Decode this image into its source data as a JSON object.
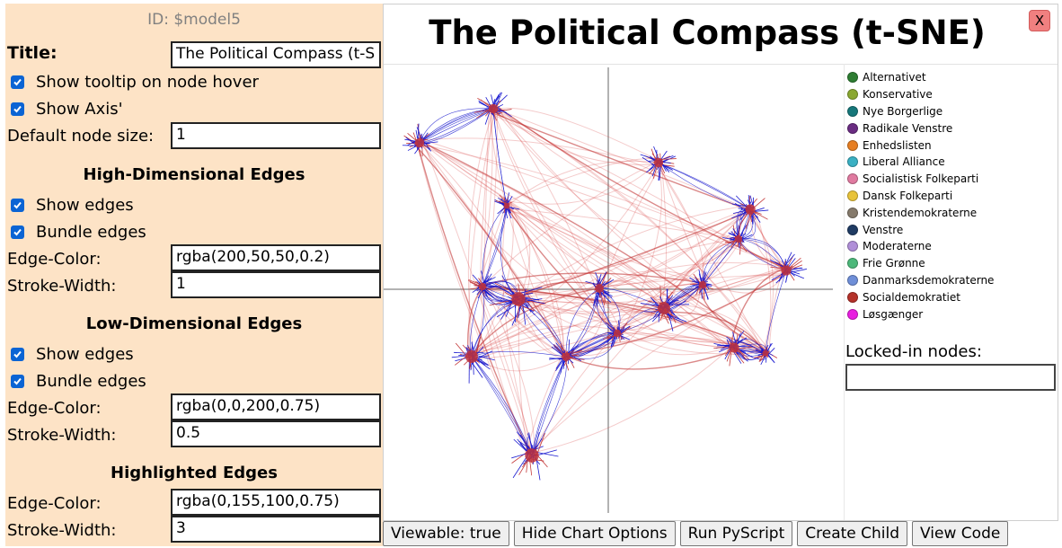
{
  "options": {
    "model_id": "ID: $model5",
    "title_label": "Title:",
    "title_value": "The Political Compass (t-S",
    "show_tooltip_label": "Show tooltip on node hover",
    "show_axis_label": "Show Axis'",
    "default_node_size_label": "Default node size:",
    "default_node_size_value": "1",
    "high_dim": {
      "heading": "High-Dimensional Edges",
      "show_edges_label": "Show edges",
      "bundle_edges_label": "Bundle edges",
      "edge_color_label": "Edge-Color:",
      "edge_color_value": "rgba(200,50,50,0.2)",
      "stroke_width_label": "Stroke-Width:",
      "stroke_width_value": "1"
    },
    "low_dim": {
      "heading": "Low-Dimensional Edges",
      "show_edges_label": "Show edges",
      "bundle_edges_label": "Bundle edges",
      "edge_color_label": "Edge-Color:",
      "edge_color_value": "rgba(0,0,200,0.75)",
      "stroke_width_label": "Stroke-Width:",
      "stroke_width_value": "0.5"
    },
    "highlighted": {
      "heading": "Highlighted Edges",
      "edge_color_label": "Edge-Color:",
      "edge_color_value": "rgba(0,155,100,0.75)",
      "stroke_width_label": "Stroke-Width:",
      "stroke_width_value": "3"
    }
  },
  "chart": {
    "title": "The Political Compass (t-SNE)",
    "close_label": "X",
    "locked_in_label": "Locked-in nodes:",
    "legend": [
      {
        "name": "Alternativet",
        "color": "#2e7d32"
      },
      {
        "name": "Konservative",
        "color": "#8aa831"
      },
      {
        "name": "Nye Borgerlige",
        "color": "#16777a"
      },
      {
        "name": "Radikale Venstre",
        "color": "#6a2c82"
      },
      {
        "name": "Enhedslisten",
        "color": "#e67e22"
      },
      {
        "name": "Liberal Alliance",
        "color": "#3ab0c3"
      },
      {
        "name": "Socialistisk Folkeparti",
        "color": "#e07aa0"
      },
      {
        "name": "Dansk Folkeparti",
        "color": "#e8c33a"
      },
      {
        "name": "Kristendemokraterne",
        "color": "#857a6b"
      },
      {
        "name": "Venstre",
        "color": "#1f3b63"
      },
      {
        "name": "Moderaterne",
        "color": "#b08fd8"
      },
      {
        "name": "Frie Grønne",
        "color": "#4cb87a"
      },
      {
        "name": "Danmarksdemokraterne",
        "color": "#6f8fd8"
      },
      {
        "name": "Socialdemokratiet",
        "color": "#b5322a"
      },
      {
        "name": "Løsgænger",
        "color": "#e81ee0"
      }
    ]
  },
  "buttons": {
    "viewable": "Viewable: true",
    "hide_options": "Hide Chart Options",
    "run_pyscript": "Run PyScript",
    "create_child": "Create Child",
    "view_code": "View Code"
  },
  "colors": {
    "panel_bg": "#fde3c6",
    "checkbox": "#0b64d4",
    "high_dim_edge": "rgba(200,50,50,0.2)",
    "low_dim_edge": "rgba(0,0,200,0.75)"
  }
}
